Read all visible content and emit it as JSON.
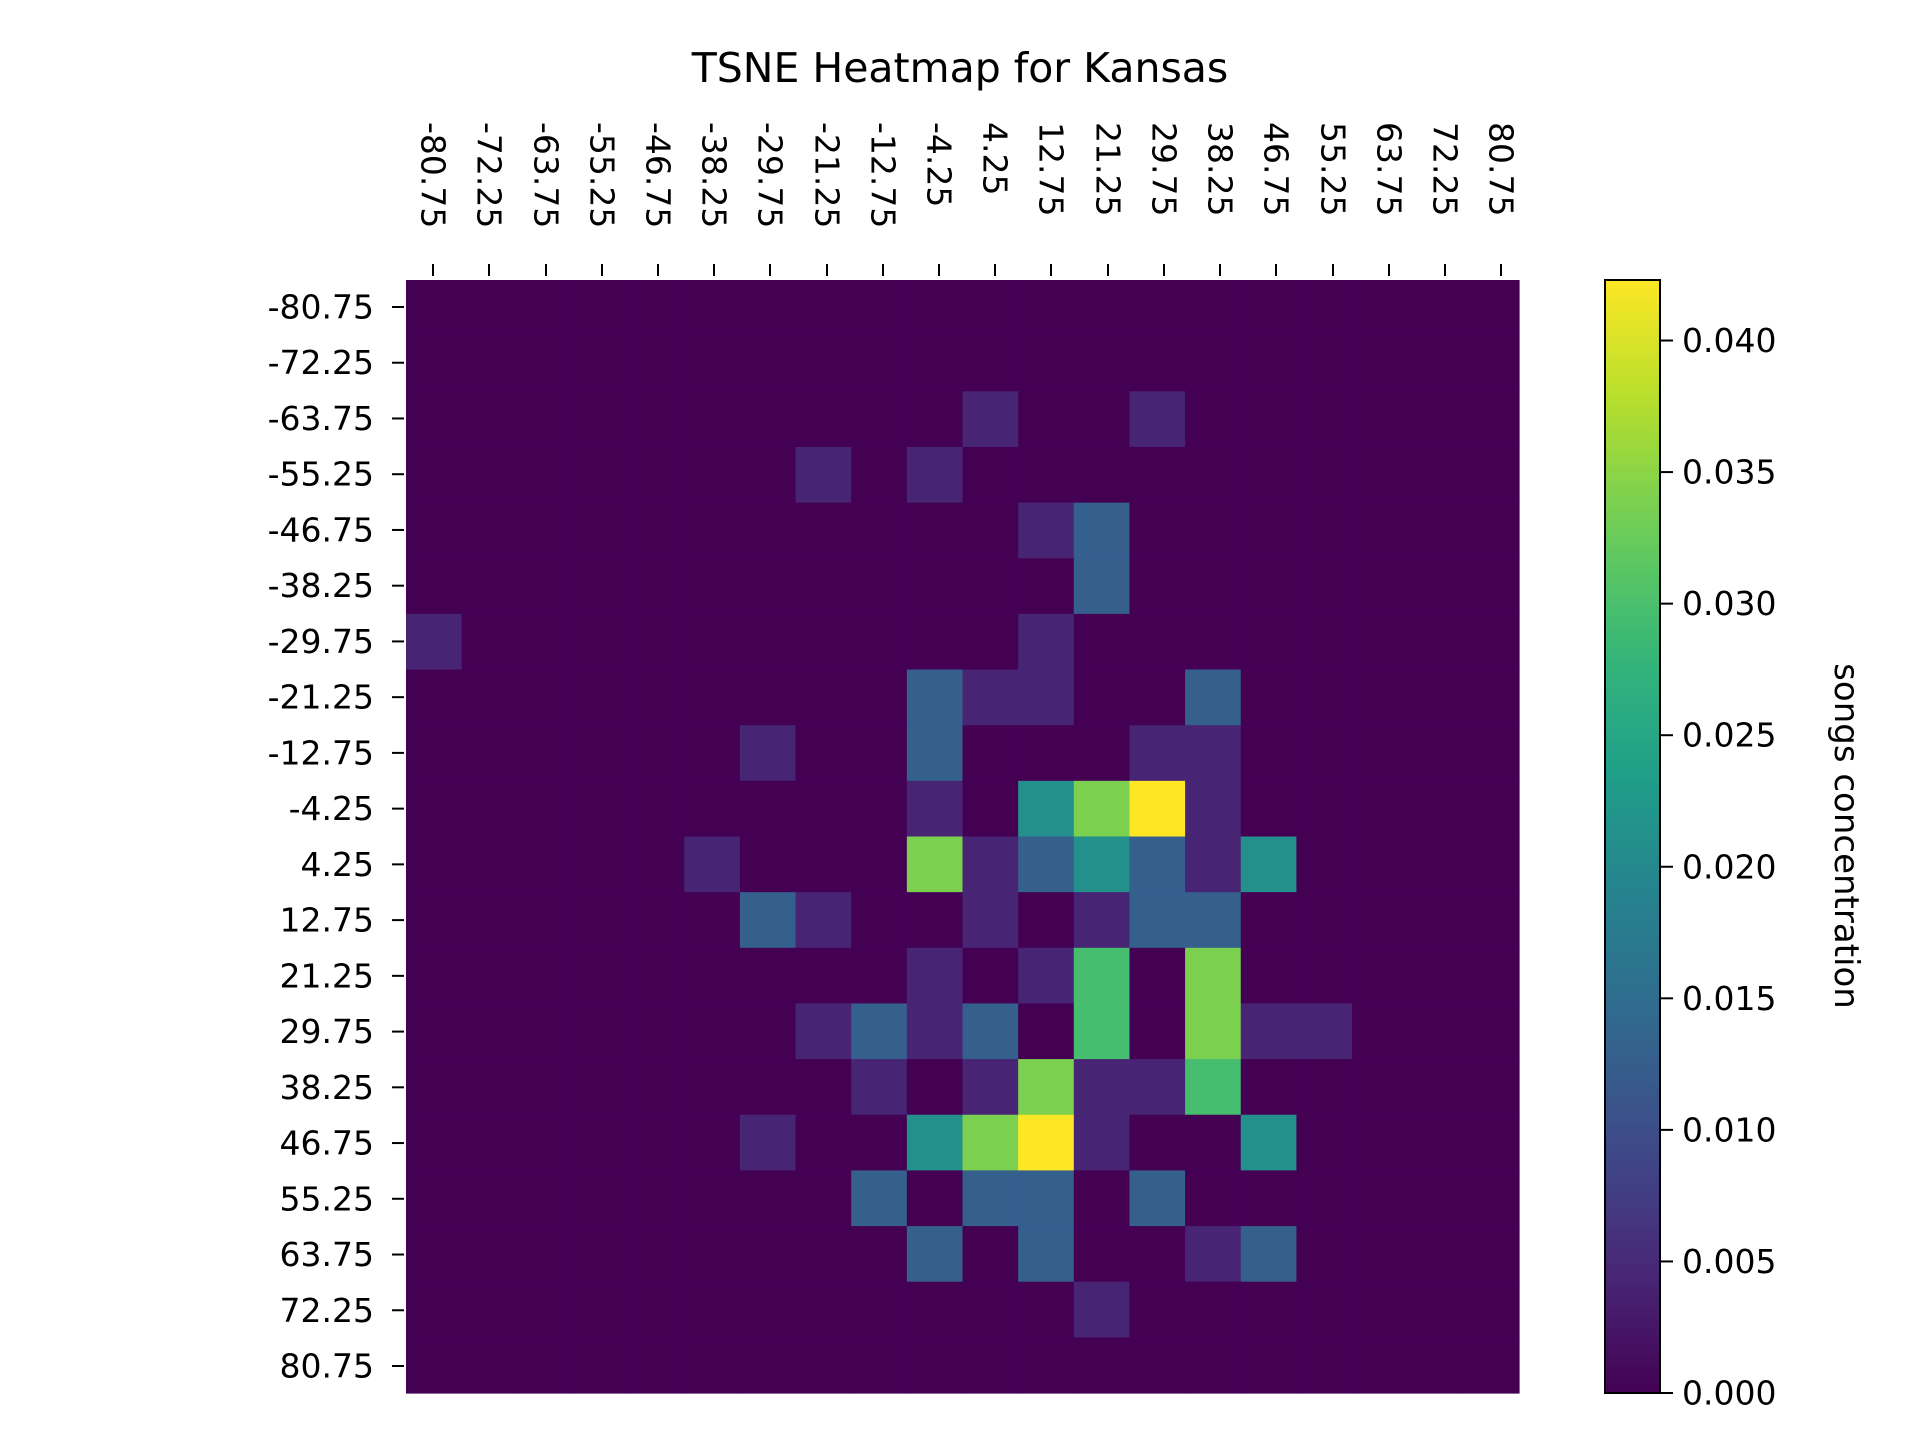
{
  "chart_data": {
    "type": "heatmap",
    "title": "TSNE Heatmap for Kansas",
    "x_ticks": [
      "-80.75",
      "-72.25",
      "-63.75",
      "-55.25",
      "-46.75",
      "-38.25",
      "-29.75",
      "-21.25",
      "-12.75",
      "-4.25",
      "4.25",
      "12.75",
      "21.25",
      "29.75",
      "38.25",
      "46.75",
      "55.25",
      "63.75",
      "72.25",
      "80.75"
    ],
    "y_ticks": [
      "-80.75",
      "-72.25",
      "-63.75",
      "-55.25",
      "-46.75",
      "-38.25",
      "-29.75",
      "-21.25",
      "-12.75",
      "-4.25",
      "4.25",
      "12.75",
      "21.25",
      "29.75",
      "38.25",
      "46.75",
      "55.25",
      "63.75",
      "72.25",
      "80.75"
    ],
    "grid_shape": [
      20,
      20
    ],
    "nonzero_cells": [
      {
        "row": 2,
        "col": 10,
        "value": 0.0042
      },
      {
        "row": 2,
        "col": 13,
        "value": 0.0042
      },
      {
        "row": 3,
        "col": 7,
        "value": 0.0042
      },
      {
        "row": 3,
        "col": 9,
        "value": 0.0042
      },
      {
        "row": 4,
        "col": 11,
        "value": 0.0042
      },
      {
        "row": 4,
        "col": 12,
        "value": 0.0127
      },
      {
        "row": 5,
        "col": 12,
        "value": 0.0127
      },
      {
        "row": 6,
        "col": 0,
        "value": 0.0042
      },
      {
        "row": 6,
        "col": 11,
        "value": 0.0042
      },
      {
        "row": 7,
        "col": 9,
        "value": 0.0127
      },
      {
        "row": 7,
        "col": 10,
        "value": 0.0042
      },
      {
        "row": 7,
        "col": 11,
        "value": 0.0042
      },
      {
        "row": 7,
        "col": 14,
        "value": 0.0127
      },
      {
        "row": 8,
        "col": 6,
        "value": 0.0042
      },
      {
        "row": 8,
        "col": 9,
        "value": 0.0127
      },
      {
        "row": 8,
        "col": 13,
        "value": 0.0042
      },
      {
        "row": 8,
        "col": 14,
        "value": 0.0042
      },
      {
        "row": 9,
        "col": 9,
        "value": 0.0042
      },
      {
        "row": 9,
        "col": 11,
        "value": 0.0211
      },
      {
        "row": 9,
        "col": 12,
        "value": 0.0338
      },
      {
        "row": 9,
        "col": 13,
        "value": 0.0423
      },
      {
        "row": 9,
        "col": 14,
        "value": 0.0042
      },
      {
        "row": 10,
        "col": 5,
        "value": 0.0042
      },
      {
        "row": 10,
        "col": 9,
        "value": 0.0338
      },
      {
        "row": 10,
        "col": 10,
        "value": 0.0042
      },
      {
        "row": 10,
        "col": 11,
        "value": 0.0127
      },
      {
        "row": 10,
        "col": 12,
        "value": 0.0211
      },
      {
        "row": 10,
        "col": 13,
        "value": 0.0127
      },
      {
        "row": 10,
        "col": 14,
        "value": 0.0042
      },
      {
        "row": 10,
        "col": 15,
        "value": 0.0211
      },
      {
        "row": 11,
        "col": 6,
        "value": 0.0127
      },
      {
        "row": 11,
        "col": 7,
        "value": 0.0042
      },
      {
        "row": 11,
        "col": 10,
        "value": 0.0042
      },
      {
        "row": 11,
        "col": 12,
        "value": 0.0042
      },
      {
        "row": 11,
        "col": 13,
        "value": 0.0127
      },
      {
        "row": 11,
        "col": 14,
        "value": 0.0127
      },
      {
        "row": 12,
        "col": 9,
        "value": 0.0042
      },
      {
        "row": 12,
        "col": 11,
        "value": 0.0042
      },
      {
        "row": 12,
        "col": 12,
        "value": 0.0296
      },
      {
        "row": 12,
        "col": 14,
        "value": 0.0338
      },
      {
        "row": 13,
        "col": 7,
        "value": 0.0042
      },
      {
        "row": 13,
        "col": 8,
        "value": 0.0127
      },
      {
        "row": 13,
        "col": 9,
        "value": 0.0042
      },
      {
        "row": 13,
        "col": 10,
        "value": 0.0127
      },
      {
        "row": 13,
        "col": 12,
        "value": 0.0296
      },
      {
        "row": 13,
        "col": 14,
        "value": 0.0338
      },
      {
        "row": 13,
        "col": 15,
        "value": 0.0042
      },
      {
        "row": 13,
        "col": 16,
        "value": 0.0042
      },
      {
        "row": 14,
        "col": 8,
        "value": 0.0042
      },
      {
        "row": 14,
        "col": 10,
        "value": 0.0042
      },
      {
        "row": 14,
        "col": 11,
        "value": 0.0338
      },
      {
        "row": 14,
        "col": 12,
        "value": 0.0042
      },
      {
        "row": 14,
        "col": 13,
        "value": 0.0042
      },
      {
        "row": 14,
        "col": 14,
        "value": 0.0296
      },
      {
        "row": 15,
        "col": 6,
        "value": 0.0042
      },
      {
        "row": 15,
        "col": 9,
        "value": 0.0211
      },
      {
        "row": 15,
        "col": 10,
        "value": 0.0338
      },
      {
        "row": 15,
        "col": 11,
        "value": 0.0423
      },
      {
        "row": 15,
        "col": 12,
        "value": 0.0042
      },
      {
        "row": 15,
        "col": 15,
        "value": 0.0211
      },
      {
        "row": 16,
        "col": 8,
        "value": 0.0127
      },
      {
        "row": 16,
        "col": 10,
        "value": 0.0127
      },
      {
        "row": 16,
        "col": 11,
        "value": 0.0127
      },
      {
        "row": 16,
        "col": 13,
        "value": 0.0127
      },
      {
        "row": 17,
        "col": 9,
        "value": 0.0127
      },
      {
        "row": 17,
        "col": 11,
        "value": 0.0127
      },
      {
        "row": 17,
        "col": 14,
        "value": 0.0042
      },
      {
        "row": 17,
        "col": 15,
        "value": 0.0127
      },
      {
        "row": 18,
        "col": 12,
        "value": 0.0042
      }
    ],
    "vmin": 0.0,
    "vmax": 0.0423,
    "colormap": "viridis",
    "colorbar": {
      "label": "songs concentration",
      "ticks": [
        "0.000",
        "0.005",
        "0.010",
        "0.015",
        "0.020",
        "0.025",
        "0.030",
        "0.035",
        "0.040"
      ],
      "tick_values": [
        0.0,
        0.005,
        0.01,
        0.015,
        0.02,
        0.025,
        0.03,
        0.035,
        0.04
      ]
    },
    "grid": false
  }
}
